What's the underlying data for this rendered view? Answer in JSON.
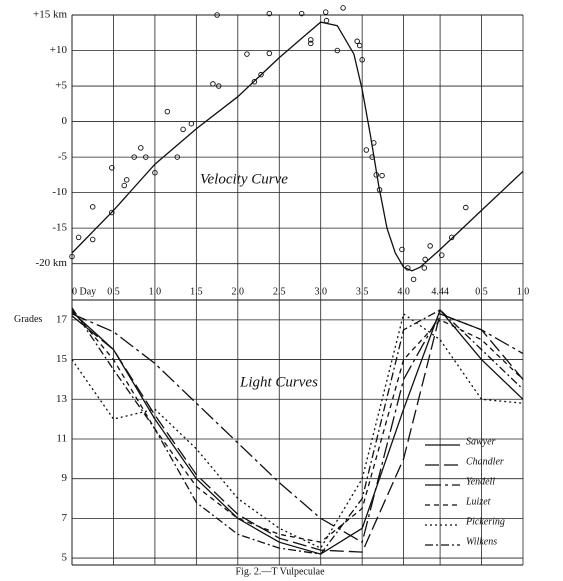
{
  "caption": "Fig. 2.—T Vulpeculae",
  "chart_data": [
    {
      "type": "line",
      "annotation": "Velocity Curve",
      "xlim": [
        0,
        5.44
      ],
      "ylim": [
        -23,
        15
      ],
      "xticks": [
        {
          "value": 0,
          "label": "0 Day"
        },
        0.5,
        {
          "value": 1,
          "label": "1.0"
        },
        1.5,
        {
          "value": 2,
          "label": "2.0"
        },
        2.5,
        {
          "value": 3,
          "label": "3.0"
        },
        3.5,
        {
          "value": 4,
          "label": "4.0"
        },
        4.44,
        {
          "value": 4.94,
          "label": "0.5"
        },
        {
          "value": 5.44,
          "label": "1.0"
        }
      ],
      "yticks": [
        {
          "value": 15,
          "label": "+15 km"
        },
        {
          "value": 10,
          "label": "+10"
        },
        {
          "value": 5,
          "label": "+5"
        },
        0,
        -5,
        -10,
        -15,
        {
          "value": -20,
          "label": "-20 km"
        }
      ],
      "x": [
        0,
        0.5,
        1,
        1.5,
        2,
        2.5,
        2.8,
        3,
        3.2,
        3.4,
        3.5,
        3.6,
        3.7,
        3.8,
        3.9,
        4,
        4.1,
        4.2,
        4.44,
        4.94,
        5.44
      ],
      "series": [
        {
          "color": "#111",
          "values": [
            -18.5,
            -12.5,
            -6,
            -1,
            3.5,
            9,
            12,
            14,
            13.5,
            9.5,
            4.5,
            -2,
            -9,
            -15,
            -18.5,
            -20.5,
            -21,
            -20.5,
            -18,
            -12.5,
            -7
          ]
        }
      ],
      "points": {
        "x": [
          0,
          0.08,
          0.25,
          0.25,
          0.48,
          0.48,
          0.63,
          0.66,
          0.75,
          0.83,
          0.89,
          1.0,
          1.15,
          1.27,
          1.34,
          1.44,
          1.7,
          1.75,
          1.77,
          2.11,
          2.2,
          2.28,
          2.38,
          2.38,
          2.77,
          2.88,
          2.88,
          3.06,
          3.07,
          3.27,
          3.2,
          3.44,
          3.47,
          3.5,
          3.55,
          3.62,
          3.64,
          3.67,
          3.71,
          3.74,
          3.98,
          4.05,
          4.12,
          4.25,
          4.26,
          4.32,
          4.46,
          4.58,
          4.75
        ],
        "y": [
          -19,
          -16.3,
          -16.6,
          -12,
          -12.8,
          -6.5,
          -9,
          -8.2,
          -5,
          -3.7,
          -5,
          -7.2,
          1.4,
          -5,
          -1.1,
          -0.3,
          5.3,
          15,
          5,
          9.5,
          5.6,
          6.6,
          9.6,
          15.2,
          15.2,
          11,
          11.5,
          15.4,
          14.2,
          16,
          10,
          11.3,
          10.7,
          8.7,
          -4,
          -5,
          -3,
          -7.5,
          -9.6,
          -7.6,
          -18,
          -20.6,
          -22.2,
          -20.6,
          -19.4,
          -17.5,
          -18.8,
          -16.3,
          -12.1
        ]
      }
    },
    {
      "type": "line",
      "annotation": "Light Curves",
      "ylabel": "Grades",
      "xlim": [
        0,
        5.44
      ],
      "ylim": [
        4.5,
        18
      ],
      "yticks": [
        17,
        15,
        13,
        11,
        9,
        7,
        5
      ],
      "x": [
        0,
        0.5,
        1,
        1.5,
        2,
        2.5,
        3,
        3.5,
        4,
        4.44,
        4.94,
        5.44
      ],
      "series": [
        {
          "name": "Sawyer",
          "color": "#111",
          "values": [
            17.4,
            15.5,
            12,
            9,
            7,
            5.8,
            5.2,
            6.5,
            12.5,
            17.5,
            15,
            13
          ]
        },
        {
          "name": "Chandler",
          "color": "#111",
          "values": [
            17.2,
            15.5,
            12.2,
            9.2,
            7.2,
            6,
            5.4,
            5.3,
            10,
            17.3,
            16.5,
            14
          ]
        },
        {
          "name": "Yendell",
          "color": "#111",
          "values": [
            17.3,
            16.4,
            14.8,
            12.8,
            10.8,
            8.8,
            7,
            5.8,
            14,
            17.3,
            16.5,
            15.3
          ]
        },
        {
          "name": "Luizet",
          "color": "#111",
          "values": [
            17.5,
            15,
            11.5,
            8.6,
            7,
            6.2,
            5.8,
            7.5,
            15,
            17,
            16,
            14
          ]
        },
        {
          "name": "Pickering",
          "color": "#111",
          "values": [
            15,
            12,
            12.5,
            10.5,
            8,
            6.5,
            5.5,
            9,
            17.3,
            16,
            13,
            12.8
          ]
        },
        {
          "name": "Wilkens",
          "color": "#111",
          "values": [
            17.6,
            14.5,
            11.5,
            7.8,
            6.2,
            5.5,
            5.2,
            8,
            16.5,
            17.5,
            15.5,
            13.5
          ]
        }
      ]
    }
  ]
}
